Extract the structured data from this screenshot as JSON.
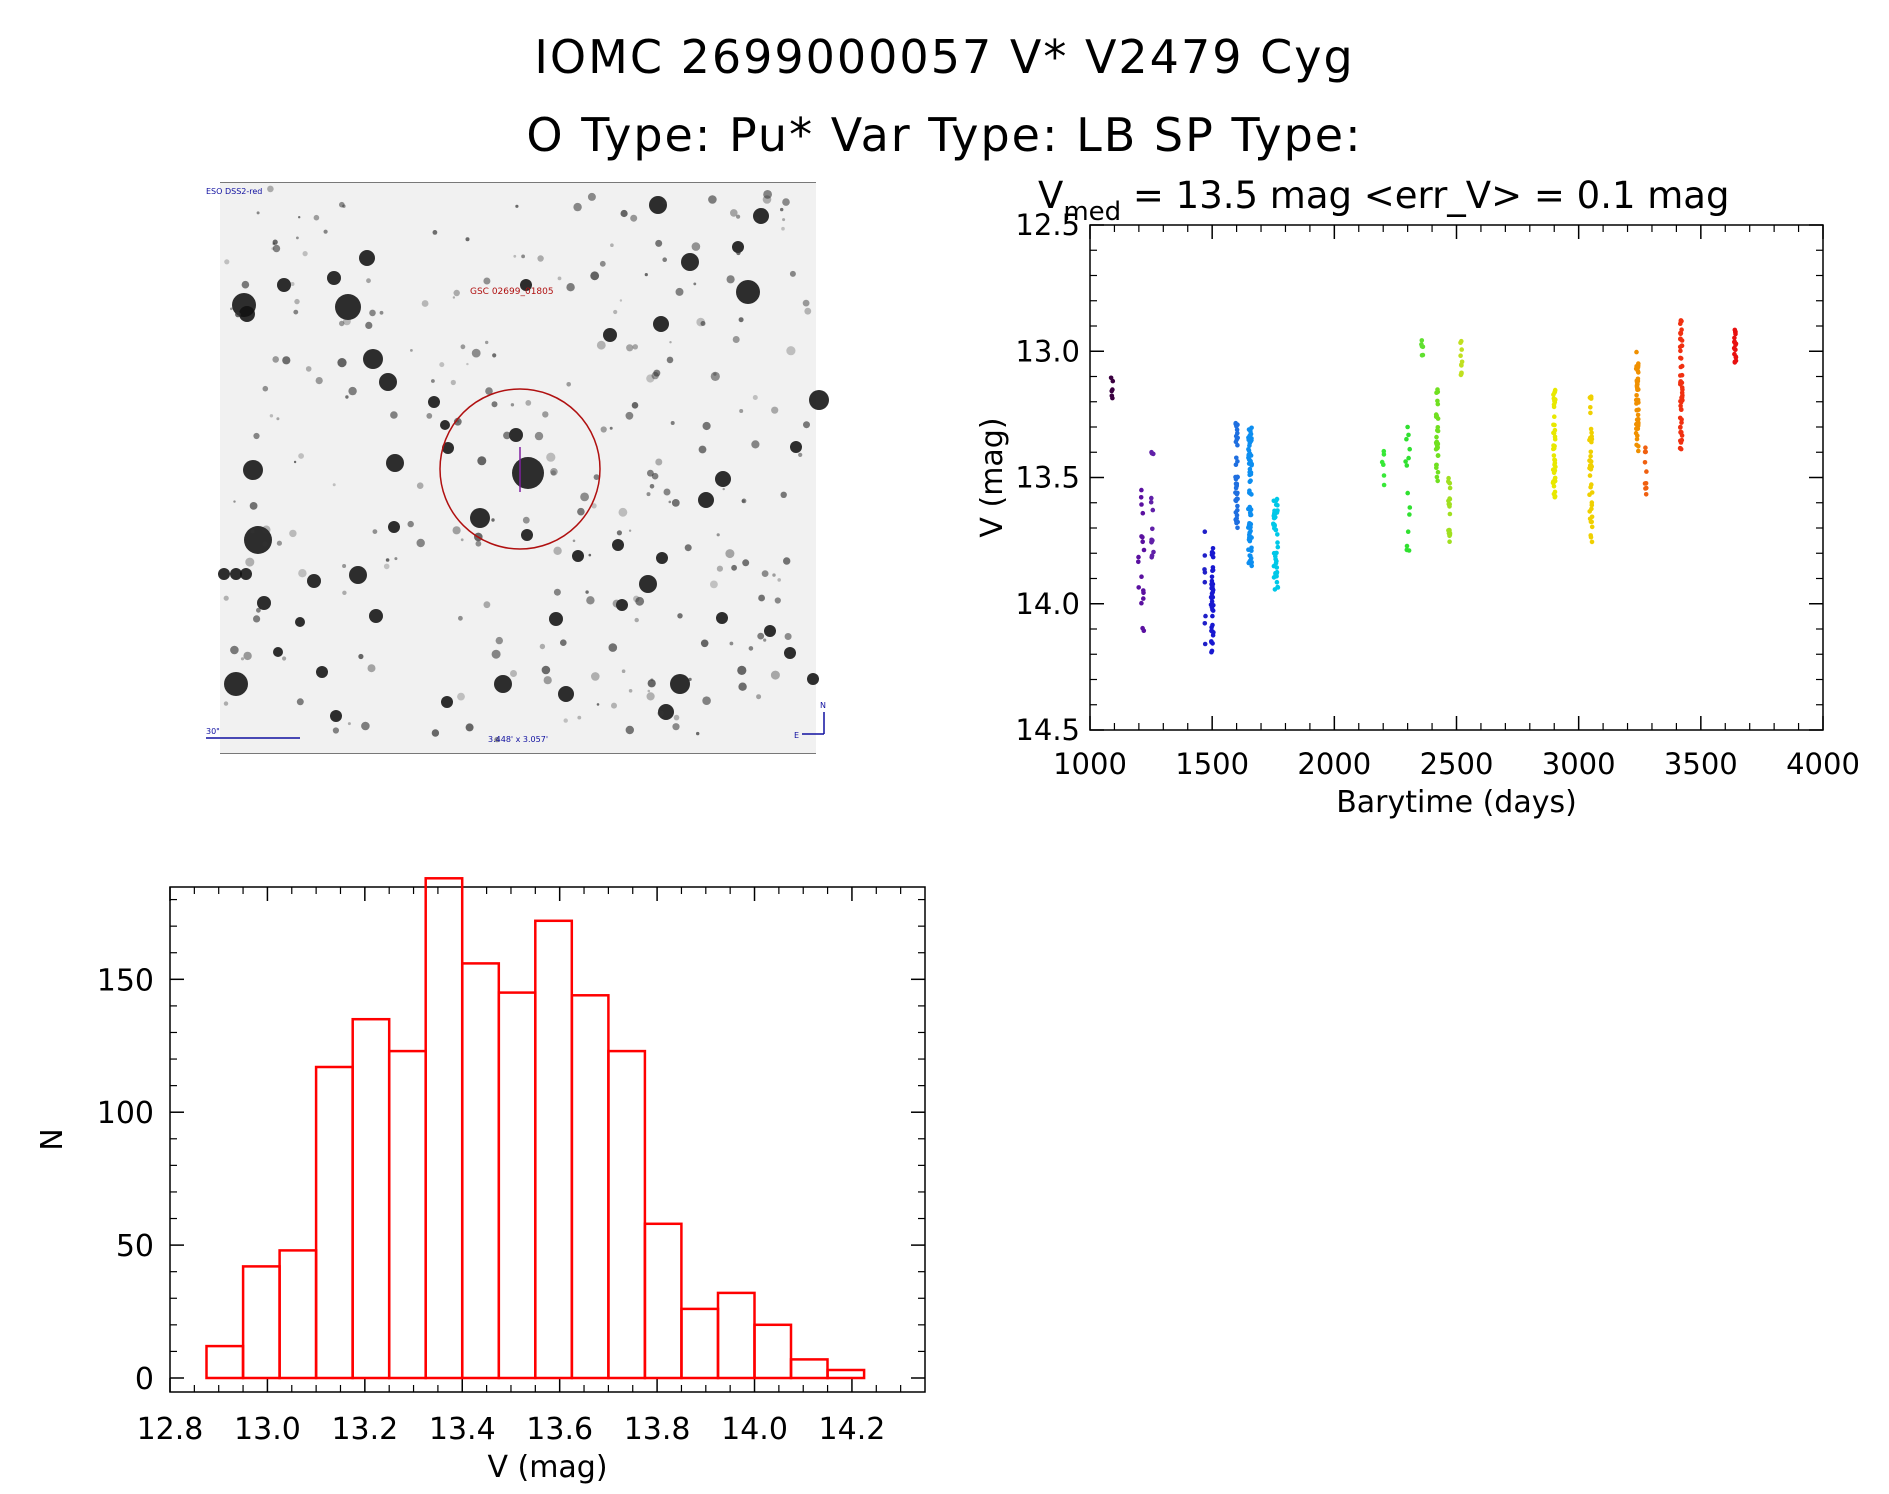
{
  "header": {
    "title": "IOMC 2699000057    V* V2479 Cyg",
    "subtitle": "O Type: Pu*  Var Type: LB  SP Type:"
  },
  "finder": {
    "corner_label": "ESO DSS2-red",
    "star_label": "GSC 02699_01805",
    "scale_label": "30\"",
    "fov_label": "3.448' x 3.057'",
    "north_label": "N",
    "east_label": "E"
  },
  "colors": {
    "axis": "#000000",
    "hist": "#ff0000",
    "circle": "#b01010",
    "label_blue": "#1010a0"
  },
  "chart_data": [
    {
      "type": "scatter",
      "title_prefix": "V",
      "title_sub": "med",
      "title_rest": " = 13.5 mag <err_V> = 0.1 mag",
      "xlabel": "Barytime (days)",
      "ylabel": "V (mag)",
      "xlim": [
        1000,
        4000
      ],
      "ylim": [
        14.5,
        12.5
      ],
      "xticks": [
        "1000",
        "1500",
        "2000",
        "2500",
        "3000",
        "3500",
        "4000"
      ],
      "yticks": [
        "12.5",
        "13.0",
        "13.5",
        "14.0",
        "14.5"
      ],
      "clusters": [
        {
          "x": 1090,
          "xs": 8,
          "lo": 13.07,
          "hi": 13.2,
          "n": 6,
          "color": "#3a0040"
        },
        {
          "x": 1210,
          "xs": 25,
          "lo": 13.55,
          "hi": 14.13,
          "n": 18,
          "color": "#5a10a0"
        },
        {
          "x": 1255,
          "xs": 10,
          "lo": 13.38,
          "hi": 13.82,
          "n": 14,
          "color": "#6020a8"
        },
        {
          "x": 1470,
          "xs": 8,
          "lo": 13.7,
          "hi": 14.17,
          "n": 8,
          "color": "#2020c8"
        },
        {
          "x": 1500,
          "xs": 10,
          "lo": 13.75,
          "hi": 14.2,
          "n": 40,
          "color": "#1818d0"
        },
        {
          "x": 1600,
          "xs": 10,
          "lo": 13.28,
          "hi": 13.72,
          "n": 40,
          "color": "#1f6fe0"
        },
        {
          "x": 1655,
          "xs": 14,
          "lo": 13.3,
          "hi": 13.85,
          "n": 70,
          "color": "#0d8ef0"
        },
        {
          "x": 1760,
          "xs": 20,
          "lo": 13.58,
          "hi": 13.95,
          "n": 45,
          "color": "#00c8e8"
        },
        {
          "x": 2200,
          "xs": 12,
          "lo": 13.35,
          "hi": 13.55,
          "n": 6,
          "color": "#38e838"
        },
        {
          "x": 2300,
          "xs": 18,
          "lo": 13.3,
          "hi": 13.8,
          "n": 14,
          "color": "#30e030"
        },
        {
          "x": 2360,
          "xs": 8,
          "lo": 12.95,
          "hi": 13.03,
          "n": 6,
          "color": "#60e030"
        },
        {
          "x": 2420,
          "xs": 10,
          "lo": 13.08,
          "hi": 13.55,
          "n": 30,
          "color": "#70e020"
        },
        {
          "x": 2470,
          "xs": 8,
          "lo": 13.48,
          "hi": 13.76,
          "n": 20,
          "color": "#a0e020"
        },
        {
          "x": 2520,
          "xs": 8,
          "lo": 12.95,
          "hi": 13.1,
          "n": 10,
          "color": "#c0e020"
        },
        {
          "x": 2900,
          "xs": 10,
          "lo": 13.15,
          "hi": 13.58,
          "n": 45,
          "color": "#e8e800"
        },
        {
          "x": 3050,
          "xs": 12,
          "lo": 13.18,
          "hi": 13.77,
          "n": 40,
          "color": "#f0d000"
        },
        {
          "x": 3240,
          "xs": 10,
          "lo": 13.0,
          "hi": 13.4,
          "n": 45,
          "color": "#f09000"
        },
        {
          "x": 3275,
          "xs": 8,
          "lo": 13.33,
          "hi": 13.57,
          "n": 10,
          "color": "#f06010"
        },
        {
          "x": 3420,
          "xs": 10,
          "lo": 12.87,
          "hi": 13.4,
          "n": 55,
          "color": "#f03010"
        },
        {
          "x": 3640,
          "xs": 8,
          "lo": 12.9,
          "hi": 13.05,
          "n": 20,
          "color": "#e81010"
        }
      ]
    },
    {
      "type": "bar",
      "xlabel": "V (mag)",
      "ylabel": "N",
      "xlim": [
        12.8,
        14.35
      ],
      "ylim": [
        0,
        190
      ],
      "xticks": [
        "12.8",
        "13.0",
        "13.2",
        "13.4",
        "13.6",
        "13.8",
        "14.0",
        "14.2"
      ],
      "yticks": [
        "0",
        "50",
        "100",
        "150"
      ],
      "bin_start": 12.875,
      "bin_width": 0.075,
      "values": [
        12,
        42,
        48,
        117,
        135,
        123,
        188,
        156,
        145,
        172,
        144,
        123,
        58,
        26,
        32,
        20,
        7,
        3
      ]
    }
  ]
}
